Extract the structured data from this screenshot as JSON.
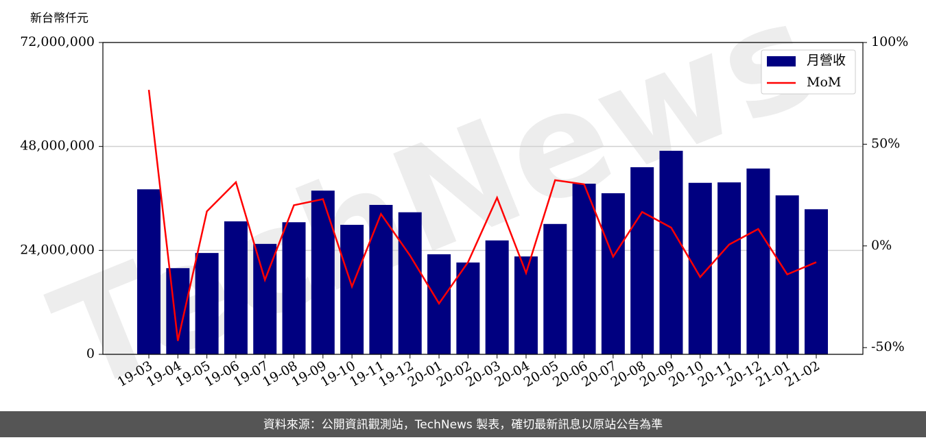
{
  "chart_data": {
    "type": "bar_line",
    "y_label": "新台幣仟元",
    "watermark": "TechNews",
    "footer": "資料來源：公開資訊觀測站，TechNews 製表，確切最新訊息以原站公告為準",
    "categories": [
      "19-03",
      "19-04",
      "19-05",
      "19-06",
      "19-07",
      "19-08",
      "19-09",
      "19-10",
      "19-11",
      "19-12",
      "20-01",
      "20-02",
      "20-03",
      "20-04",
      "20-05",
      "20-06",
      "20-07",
      "20-08",
      "20-09",
      "20-10",
      "20-11",
      "20-12",
      "21-01",
      "21-02"
    ],
    "series": [
      {
        "name": "月營收",
        "color": "#000080",
        "type": "bar",
        "values": [
          38100000,
          19900000,
          23400000,
          30700000,
          25500000,
          30500000,
          37800000,
          29900000,
          34500000,
          32800000,
          23100000,
          21200000,
          26300000,
          22600000,
          30100000,
          39400000,
          37200000,
          43200000,
          47000000,
          39600000,
          39700000,
          42900000,
          36700000,
          33500000
        ]
      },
      {
        "name": "MoM",
        "color": "#ff0000",
        "type": "line",
        "axis": "y2",
        "values": [
          76.7,
          -46.7,
          17,
          31.3,
          -16.7,
          20,
          23,
          -20,
          15.7,
          -4.7,
          -28.3,
          -8,
          23.7,
          -13.3,
          32.3,
          30.3,
          -5.3,
          16.7,
          9,
          -15.3,
          0.7,
          8.3,
          -14,
          -8
        ]
      }
    ],
    "ylim": [
      0,
      72000000
    ],
    "yticks": [
      0,
      {
        "value": 24000000,
        "label": "24,000,000"
      },
      {
        "value": 48000000,
        "label": "48,000,000"
      },
      {
        "value": 72000000,
        "label": "72,000,000"
      }
    ],
    "y2lim": [
      -53.3,
      100
    ],
    "y2ticks": [
      {
        "value": -50,
        "label": "-50%"
      },
      {
        "value": 0,
        "label": "0%"
      },
      {
        "value": 50,
        "label": "50%"
      },
      {
        "value": 100,
        "label": "100%"
      }
    ],
    "grid": true,
    "legend": "upper right"
  }
}
